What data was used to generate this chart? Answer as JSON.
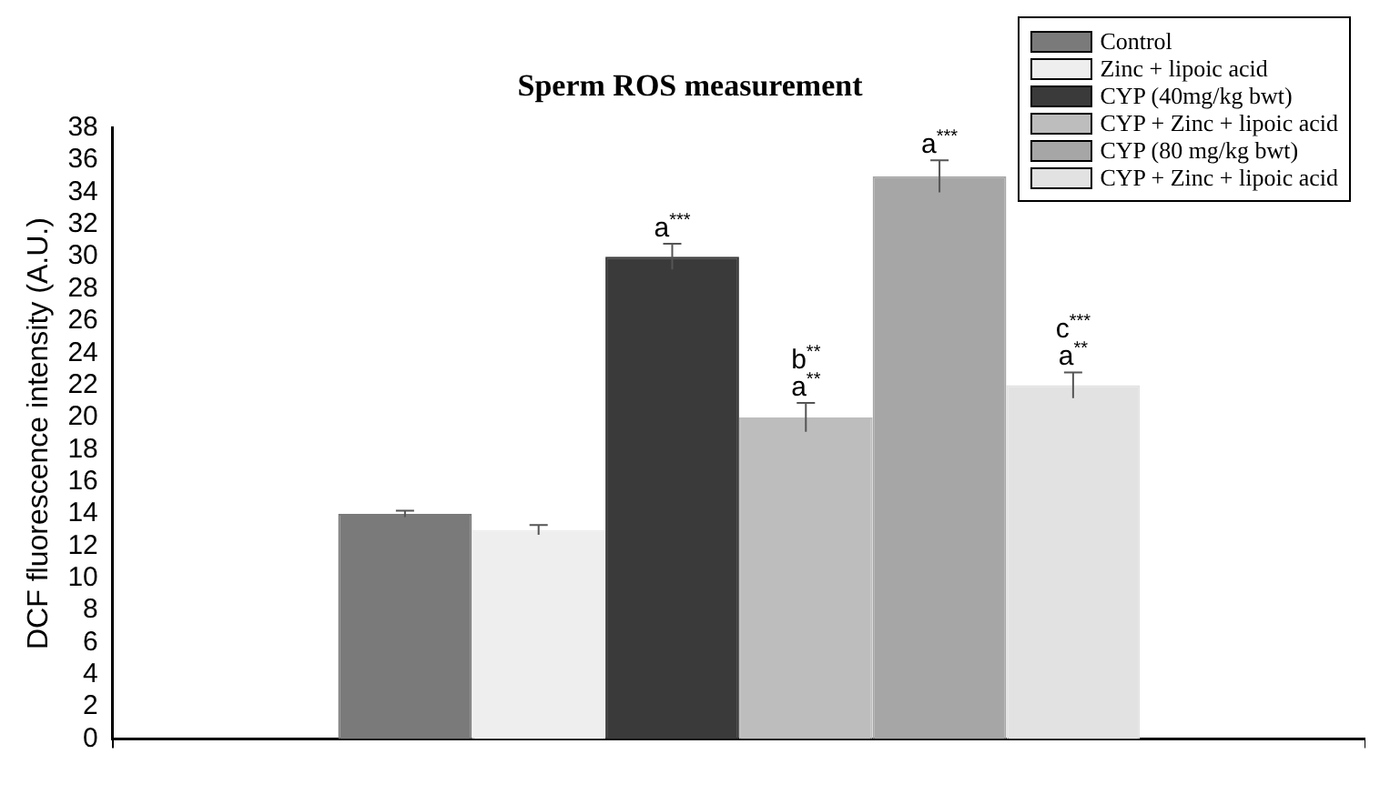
{
  "chart_data": {
    "type": "bar",
    "title": "Sperm ROS measurement",
    "ylabel": "DCF fluorescence intensity (A.U.)",
    "categories": [
      null
    ],
    "series": [
      {
        "name": "Control",
        "color": "#7a7a7a",
        "values": [
          14
        ],
        "errors": [
          0.2
        ]
      },
      {
        "name": "Zinc + lipoic acid",
        "color": "#eeeeee",
        "values": [
          13
        ],
        "errors": [
          0.3
        ]
      },
      {
        "name": "CYP (40mg/kg bwt)",
        "color": "#3a3a3a",
        "values": [
          30
        ],
        "errors": [
          0.8
        ],
        "value_labels": [
          "a$^{***}$"
        ]
      },
      {
        "name": "CYP + Zinc + lipoic acid",
        "color": "#bdbdbd",
        "values": [
          20
        ],
        "errors": [
          0.9
        ],
        "value_labels": [
          "b$^{**}$\na$^{**}$"
        ]
      },
      {
        "name": "CYP (80 mg/kg bwt)",
        "color": "#a6a6a6",
        "values": [
          35
        ],
        "errors": [
          1.0
        ],
        "value_labels": [
          "a$^{***}$"
        ]
      },
      {
        "name": "CYP + Zinc + lipoic acid",
        "color": "#e2e2e2",
        "values": [
          22
        ],
        "errors": [
          0.8
        ],
        "value_labels": [
          "c$^{***}$\na$^{**}$"
        ]
      }
    ],
    "ylim": [
      0,
      38
    ],
    "yticks": [
      0,
      2,
      4,
      6,
      8,
      10,
      12,
      14,
      16,
      18,
      20,
      22,
      24,
      26,
      28,
      30,
      32,
      34,
      36,
      38
    ],
    "grid": false,
    "legend": "top right"
  }
}
